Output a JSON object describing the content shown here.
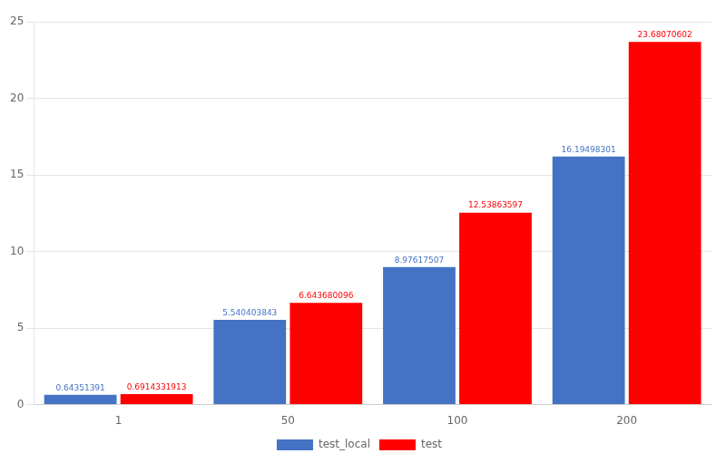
{
  "chart_data": {
    "type": "bar",
    "categories": [
      "1",
      "50",
      "100",
      "200"
    ],
    "series": [
      {
        "name": "test_local",
        "color": "#4472C4",
        "values": [
          0.64351391,
          5.540403843,
          8.97617507,
          16.19498301
        ]
      },
      {
        "name": "test",
        "color": "#FF0000",
        "values": [
          0.6914331913,
          6.643680096,
          12.53863597,
          23.68070602
        ]
      }
    ],
    "ylim": [
      0,
      25
    ],
    "yticks": [
      0,
      5,
      10,
      15,
      20,
      25
    ],
    "grid": true,
    "legend": "bottom",
    "data_labels": true
  }
}
